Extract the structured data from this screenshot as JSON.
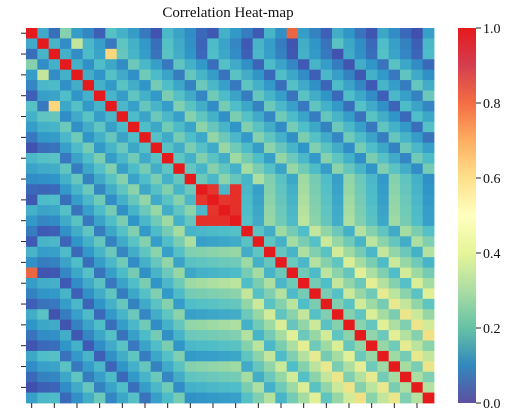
{
  "chart_data": {
    "type": "heatmap",
    "title": "Correlation Heat-map",
    "size": 36,
    "value_range": [
      0.0,
      1.0
    ],
    "colormap": "Spectral_r",
    "colorbar": {
      "ticks": [
        {
          "value": 0.0,
          "label": "0.0"
        },
        {
          "value": 0.2,
          "label": "0.2"
        },
        {
          "value": 0.4,
          "label": "0.4"
        },
        {
          "value": 0.6,
          "label": "0.6"
        },
        {
          "value": 0.8,
          "label": "0.8"
        },
        {
          "value": 1.0,
          "label": "1.0"
        }
      ]
    },
    "axis_tick_labels_visible": false,
    "matrix_upper_rows": [
      [
        1.0,
        0.26,
        0.12,
        0.42,
        0.22,
        0.17,
        0.09,
        0.33,
        0.28,
        0.22,
        0.14,
        0.05,
        0.3,
        0.24,
        0.18,
        0.11,
        0.07,
        0.28,
        0.21,
        0.15,
        0.08,
        0.29,
        0.19,
        0.86,
        0.22,
        0.16,
        0.09,
        0.27,
        0.2,
        0.13,
        0.06,
        0.25,
        0.18,
        0.11,
        0.04,
        0.23
      ],
      [
        0.0,
        1.0,
        0.29,
        0.18,
        0.51,
        0.3,
        0.23,
        0.14,
        0.35,
        0.28,
        0.21,
        0.12,
        0.33,
        0.26,
        0.19,
        0.1,
        0.31,
        0.24,
        0.17,
        0.08,
        0.29,
        0.22,
        0.15,
        0.06,
        0.27,
        0.2,
        0.13,
        0.34,
        0.25,
        0.18,
        0.11,
        0.32,
        0.23,
        0.16,
        0.09,
        0.3
      ],
      [
        0.0,
        0.0,
        1.0,
        0.28,
        0.18,
        0.31,
        0.24,
        0.65,
        0.36,
        0.29,
        0.22,
        0.13,
        0.34,
        0.27,
        0.2,
        0.11,
        0.32,
        0.25,
        0.18,
        0.09,
        0.3,
        0.23,
        0.16,
        0.07,
        0.28,
        0.21,
        0.14,
        0.05,
        0.26,
        0.19,
        0.12,
        0.33,
        0.24,
        0.17,
        0.1,
        0.31
      ],
      [
        0.0,
        0.0,
        0.0,
        1.0,
        0.28,
        0.19,
        0.32,
        0.25,
        0.18,
        0.37,
        0.3,
        0.23,
        0.14,
        0.35,
        0.28,
        0.21,
        0.12,
        0.33,
        0.26,
        0.19,
        0.1,
        0.31,
        0.24,
        0.17,
        0.08,
        0.29,
        0.22,
        0.15,
        0.06,
        0.27,
        0.2,
        0.13,
        0.34,
        0.25,
        0.18,
        0.11
      ],
      [
        0.0,
        0.0,
        0.0,
        0.0,
        1.0,
        0.27,
        0.2,
        0.33,
        0.26,
        0.19,
        0.38,
        0.31,
        0.24,
        0.15,
        0.36,
        0.29,
        0.22,
        0.13,
        0.34,
        0.27,
        0.2,
        0.11,
        0.32,
        0.25,
        0.18,
        0.09,
        0.3,
        0.23,
        0.16,
        0.07,
        0.28,
        0.21,
        0.14,
        0.35,
        0.26,
        0.19
      ],
      [
        0.0,
        0.0,
        0.0,
        0.0,
        0.0,
        1.0,
        0.28,
        0.21,
        0.34,
        0.27,
        0.2,
        0.39,
        0.32,
        0.25,
        0.16,
        0.37,
        0.3,
        0.23,
        0.14,
        0.35,
        0.28,
        0.21,
        0.12,
        0.33,
        0.26,
        0.19,
        0.1,
        0.31,
        0.24,
        0.17,
        0.08,
        0.29,
        0.22,
        0.15,
        0.36,
        0.27
      ],
      [
        0.0,
        0.0,
        0.0,
        0.0,
        0.0,
        0.0,
        1.0,
        0.29,
        0.22,
        0.35,
        0.28,
        0.21,
        0.4,
        0.33,
        0.26,
        0.17,
        0.38,
        0.31,
        0.24,
        0.15,
        0.36,
        0.29,
        0.22,
        0.13,
        0.34,
        0.27,
        0.2,
        0.11,
        0.32,
        0.25,
        0.18,
        0.09,
        0.3,
        0.23,
        0.16,
        0.37
      ],
      [
        0.0,
        0.0,
        0.0,
        0.0,
        0.0,
        0.0,
        0.0,
        1.0,
        0.3,
        0.23,
        0.36,
        0.29,
        0.22,
        0.41,
        0.34,
        0.27,
        0.18,
        0.39,
        0.32,
        0.25,
        0.16,
        0.37,
        0.3,
        0.23,
        0.14,
        0.35,
        0.28,
        0.21,
        0.12,
        0.33,
        0.26,
        0.19,
        0.1,
        0.31,
        0.24,
        0.17
      ],
      [
        0.0,
        0.0,
        0.0,
        0.0,
        0.0,
        0.0,
        0.0,
        0.0,
        1.0,
        0.31,
        0.24,
        0.37,
        0.3,
        0.23,
        0.42,
        0.35,
        0.28,
        0.19,
        0.4,
        0.33,
        0.26,
        0.17,
        0.38,
        0.31,
        0.24,
        0.15,
        0.36,
        0.29,
        0.22,
        0.13,
        0.34,
        0.27,
        0.2,
        0.11,
        0.32,
        0.25
      ],
      [
        0.0,
        0.0,
        0.0,
        0.0,
        0.0,
        0.0,
        0.0,
        0.0,
        0.0,
        1.0,
        0.32,
        0.25,
        0.38,
        0.31,
        0.24,
        0.43,
        0.36,
        0.29,
        0.2,
        0.41,
        0.34,
        0.27,
        0.18,
        0.39,
        0.32,
        0.25,
        0.16,
        0.37,
        0.3,
        0.23,
        0.14,
        0.35,
        0.28,
        0.21,
        0.12,
        0.33
      ],
      [
        0.0,
        0.0,
        0.0,
        0.0,
        0.0,
        0.0,
        0.0,
        0.0,
        0.0,
        0.0,
        1.0,
        0.33,
        0.26,
        0.39,
        0.32,
        0.25,
        0.44,
        0.37,
        0.3,
        0.21,
        0.42,
        0.35,
        0.28,
        0.19,
        0.4,
        0.33,
        0.26,
        0.17,
        0.38,
        0.31,
        0.24,
        0.15,
        0.36,
        0.29,
        0.22,
        0.13
      ],
      [
        0.0,
        0.0,
        0.0,
        0.0,
        0.0,
        0.0,
        0.0,
        0.0,
        0.0,
        0.0,
        0.0,
        1.0,
        0.34,
        0.27,
        0.4,
        0.33,
        0.26,
        0.45,
        0.38,
        0.31,
        0.22,
        0.43,
        0.36,
        0.29,
        0.2,
        0.41,
        0.34,
        0.27,
        0.18,
        0.39,
        0.32,
        0.25,
        0.16,
        0.37,
        0.3,
        0.23
      ],
      [
        0.0,
        0.0,
        0.0,
        0.0,
        0.0,
        0.0,
        0.0,
        0.0,
        0.0,
        0.0,
        0.0,
        0.0,
        1.0,
        0.35,
        0.28,
        0.41,
        0.34,
        0.27,
        0.46,
        0.39,
        0.32,
        0.23,
        0.44,
        0.37,
        0.3,
        0.21,
        0.42,
        0.35,
        0.28,
        0.19,
        0.4,
        0.33,
        0.26,
        0.17,
        0.38,
        0.31
      ],
      [
        0.0,
        0.0,
        0.0,
        0.0,
        0.0,
        0.0,
        0.0,
        0.0,
        0.0,
        0.0,
        0.0,
        0.0,
        0.0,
        1.0,
        0.36,
        0.29,
        0.42,
        0.35,
        0.28,
        0.47,
        0.4,
        0.33,
        0.24,
        0.45,
        0.38,
        0.31,
        0.22,
        0.43,
        0.36,
        0.29,
        0.2,
        0.41,
        0.34,
        0.27,
        0.18,
        0.39
      ],
      [
        0.0,
        0.0,
        0.0,
        0.0,
        0.0,
        0.0,
        0.0,
        0.0,
        0.0,
        0.0,
        0.0,
        0.0,
        0.0,
        0.0,
        1.0,
        0.37,
        0.3,
        0.43,
        0.36,
        0.29,
        0.48,
        0.41,
        0.34,
        0.25,
        0.46,
        0.39,
        0.32,
        0.23,
        0.44,
        0.37,
        0.3,
        0.21,
        0.42,
        0.35,
        0.28,
        0.19
      ],
      [
        0.0,
        0.0,
        0.0,
        0.0,
        0.0,
        0.0,
        0.0,
        0.0,
        0.0,
        0.0,
        0.0,
        0.0,
        0.0,
        0.0,
        0.0,
        1.0,
        0.95,
        0.3,
        0.96,
        0.3,
        0.23,
        0.42,
        0.35,
        0.28,
        0.47,
        0.4,
        0.33,
        0.24,
        0.45,
        0.38,
        0.31,
        0.22,
        0.43,
        0.36,
        0.29,
        0.2
      ],
      [
        0.0,
        0.0,
        0.0,
        0.0,
        0.0,
        0.0,
        0.0,
        0.0,
        0.0,
        0.0,
        0.0,
        0.0,
        0.0,
        0.0,
        0.0,
        0.0,
        1.0,
        0.95,
        0.96,
        0.31,
        0.24,
        0.43,
        0.36,
        0.29,
        0.48,
        0.41,
        0.34,
        0.25,
        0.46,
        0.39,
        0.32,
        0.23,
        0.44,
        0.37,
        0.3,
        0.21
      ],
      [
        0.0,
        0.0,
        0.0,
        0.0,
        0.0,
        0.0,
        0.0,
        0.0,
        0.0,
        0.0,
        0.0,
        0.0,
        0.0,
        0.0,
        0.0,
        0.0,
        0.0,
        1.0,
        0.96,
        0.32,
        0.25,
        0.44,
        0.37,
        0.3,
        0.49,
        0.42,
        0.35,
        0.26,
        0.47,
        0.4,
        0.33,
        0.24,
        0.45,
        0.38,
        0.31,
        0.22
      ],
      [
        0.0,
        0.0,
        0.0,
        0.0,
        0.0,
        0.0,
        0.0,
        0.0,
        0.0,
        0.0,
        0.0,
        0.0,
        0.0,
        0.0,
        0.0,
        0.0,
        0.0,
        0.0,
        1.0,
        0.33,
        0.26,
        0.45,
        0.38,
        0.31,
        0.5,
        0.43,
        0.36,
        0.27,
        0.48,
        0.41,
        0.34,
        0.25,
        0.46,
        0.39,
        0.32,
        0.23
      ],
      [
        0.0,
        0.0,
        0.0,
        0.0,
        0.0,
        0.0,
        0.0,
        0.0,
        0.0,
        0.0,
        0.0,
        0.0,
        0.0,
        0.0,
        0.0,
        0.0,
        0.0,
        0.0,
        0.0,
        1.0,
        0.34,
        0.27,
        0.46,
        0.39,
        0.32,
        0.51,
        0.44,
        0.37,
        0.28,
        0.49,
        0.42,
        0.35,
        0.26,
        0.47,
        0.4,
        0.33
      ],
      [
        0.0,
        0.0,
        0.0,
        0.0,
        0.0,
        0.0,
        0.0,
        0.0,
        0.0,
        0.0,
        0.0,
        0.0,
        0.0,
        0.0,
        0.0,
        0.0,
        0.0,
        0.0,
        0.0,
        0.0,
        1.0,
        0.35,
        0.28,
        0.47,
        0.4,
        0.33,
        0.52,
        0.45,
        0.38,
        0.29,
        0.5,
        0.43,
        0.36,
        0.27,
        0.48,
        0.41
      ],
      [
        0.0,
        0.0,
        0.0,
        0.0,
        0.0,
        0.0,
        0.0,
        0.0,
        0.0,
        0.0,
        0.0,
        0.0,
        0.0,
        0.0,
        0.0,
        0.0,
        0.0,
        0.0,
        0.0,
        0.0,
        0.0,
        1.0,
        0.36,
        0.29,
        0.48,
        0.41,
        0.34,
        0.53,
        0.46,
        0.39,
        0.3,
        0.51,
        0.44,
        0.37,
        0.28,
        0.49
      ],
      [
        0.0,
        0.0,
        0.0,
        0.0,
        0.0,
        0.0,
        0.0,
        0.0,
        0.0,
        0.0,
        0.0,
        0.0,
        0.0,
        0.0,
        0.0,
        0.0,
        0.0,
        0.0,
        0.0,
        0.0,
        0.0,
        0.0,
        1.0,
        0.37,
        0.3,
        0.49,
        0.42,
        0.35,
        0.54,
        0.47,
        0.4,
        0.31,
        0.52,
        0.45,
        0.38,
        0.29
      ],
      [
        0.0,
        0.0,
        0.0,
        0.0,
        0.0,
        0.0,
        0.0,
        0.0,
        0.0,
        0.0,
        0.0,
        0.0,
        0.0,
        0.0,
        0.0,
        0.0,
        0.0,
        0.0,
        0.0,
        0.0,
        0.0,
        0.0,
        0.0,
        1.0,
        0.38,
        0.31,
        0.5,
        0.43,
        0.36,
        0.55,
        0.48,
        0.41,
        0.32,
        0.53,
        0.46,
        0.39
      ],
      [
        0.0,
        0.0,
        0.0,
        0.0,
        0.0,
        0.0,
        0.0,
        0.0,
        0.0,
        0.0,
        0.0,
        0.0,
        0.0,
        0.0,
        0.0,
        0.0,
        0.0,
        0.0,
        0.0,
        0.0,
        0.0,
        0.0,
        0.0,
        0.0,
        1.0,
        0.39,
        0.32,
        0.51,
        0.44,
        0.37,
        0.56,
        0.49,
        0.42,
        0.33,
        0.54,
        0.47
      ],
      [
        0.0,
        0.0,
        0.0,
        0.0,
        0.0,
        0.0,
        0.0,
        0.0,
        0.0,
        0.0,
        0.0,
        0.0,
        0.0,
        0.0,
        0.0,
        0.0,
        0.0,
        0.0,
        0.0,
        0.0,
        0.0,
        0.0,
        0.0,
        0.0,
        0.0,
        1.0,
        0.4,
        0.33,
        0.52,
        0.45,
        0.38,
        0.57,
        0.5,
        0.43,
        0.34,
        0.55
      ],
      [
        0.0,
        0.0,
        0.0,
        0.0,
        0.0,
        0.0,
        0.0,
        0.0,
        0.0,
        0.0,
        0.0,
        0.0,
        0.0,
        0.0,
        0.0,
        0.0,
        0.0,
        0.0,
        0.0,
        0.0,
        0.0,
        0.0,
        0.0,
        0.0,
        0.0,
        0.0,
        1.0,
        0.41,
        0.34,
        0.53,
        0.46,
        0.39,
        0.58,
        0.51,
        0.44,
        0.35
      ],
      [
        0.0,
        0.0,
        0.0,
        0.0,
        0.0,
        0.0,
        0.0,
        0.0,
        0.0,
        0.0,
        0.0,
        0.0,
        0.0,
        0.0,
        0.0,
        0.0,
        0.0,
        0.0,
        0.0,
        0.0,
        0.0,
        0.0,
        0.0,
        0.0,
        0.0,
        0.0,
        0.0,
        1.0,
        0.42,
        0.35,
        0.54,
        0.47,
        0.4,
        0.59,
        0.52,
        0.45
      ],
      [
        0.0,
        0.0,
        0.0,
        0.0,
        0.0,
        0.0,
        0.0,
        0.0,
        0.0,
        0.0,
        0.0,
        0.0,
        0.0,
        0.0,
        0.0,
        0.0,
        0.0,
        0.0,
        0.0,
        0.0,
        0.0,
        0.0,
        0.0,
        0.0,
        0.0,
        0.0,
        0.0,
        0.0,
        1.0,
        0.43,
        0.36,
        0.55,
        0.48,
        0.41,
        0.6,
        0.53
      ],
      [
        0.0,
        0.0,
        0.0,
        0.0,
        0.0,
        0.0,
        0.0,
        0.0,
        0.0,
        0.0,
        0.0,
        0.0,
        0.0,
        0.0,
        0.0,
        0.0,
        0.0,
        0.0,
        0.0,
        0.0,
        0.0,
        0.0,
        0.0,
        0.0,
        0.0,
        0.0,
        0.0,
        0.0,
        0.0,
        1.0,
        0.44,
        0.37,
        0.56,
        0.49,
        0.42,
        0.61
      ],
      [
        0.0,
        0.0,
        0.0,
        0.0,
        0.0,
        0.0,
        0.0,
        0.0,
        0.0,
        0.0,
        0.0,
        0.0,
        0.0,
        0.0,
        0.0,
        0.0,
        0.0,
        0.0,
        0.0,
        0.0,
        0.0,
        0.0,
        0.0,
        0.0,
        0.0,
        0.0,
        0.0,
        0.0,
        0.0,
        0.0,
        1.0,
        0.45,
        0.38,
        0.57,
        0.5,
        0.43
      ],
      [
        0.0,
        0.0,
        0.0,
        0.0,
        0.0,
        0.0,
        0.0,
        0.0,
        0.0,
        0.0,
        0.0,
        0.0,
        0.0,
        0.0,
        0.0,
        0.0,
        0.0,
        0.0,
        0.0,
        0.0,
        0.0,
        0.0,
        0.0,
        0.0,
        0.0,
        0.0,
        0.0,
        0.0,
        0.0,
        0.0,
        0.0,
        1.0,
        0.46,
        0.39,
        0.58,
        0.51
      ],
      [
        0.0,
        0.0,
        0.0,
        0.0,
        0.0,
        0.0,
        0.0,
        0.0,
        0.0,
        0.0,
        0.0,
        0.0,
        0.0,
        0.0,
        0.0,
        0.0,
        0.0,
        0.0,
        0.0,
        0.0,
        0.0,
        0.0,
        0.0,
        0.0,
        0.0,
        0.0,
        0.0,
        0.0,
        0.0,
        0.0,
        0.0,
        0.0,
        1.0,
        0.47,
        0.4,
        0.59
      ],
      [
        0.0,
        0.0,
        0.0,
        0.0,
        0.0,
        0.0,
        0.0,
        0.0,
        0.0,
        0.0,
        0.0,
        0.0,
        0.0,
        0.0,
        0.0,
        0.0,
        0.0,
        0.0,
        0.0,
        0.0,
        0.0,
        0.0,
        0.0,
        0.0,
        0.0,
        0.0,
        0.0,
        0.0,
        0.0,
        0.0,
        0.0,
        0.0,
        0.0,
        1.0,
        0.48,
        0.41
      ],
      [
        0.0,
        0.0,
        0.0,
        0.0,
        0.0,
        0.0,
        0.0,
        0.0,
        0.0,
        0.0,
        0.0,
        0.0,
        0.0,
        0.0,
        0.0,
        0.0,
        0.0,
        0.0,
        0.0,
        0.0,
        0.0,
        0.0,
        0.0,
        0.0,
        0.0,
        0.0,
        0.0,
        0.0,
        0.0,
        0.0,
        0.0,
        0.0,
        0.0,
        0.0,
        1.0,
        0.49
      ],
      [
        0.0,
        0.0,
        0.0,
        0.0,
        0.0,
        0.0,
        0.0,
        0.0,
        0.0,
        0.0,
        0.0,
        0.0,
        0.0,
        0.0,
        0.0,
        0.0,
        0.0,
        0.0,
        0.0,
        0.0,
        0.0,
        0.0,
        0.0,
        0.0,
        0.0,
        0.0,
        0.0,
        0.0,
        0.0,
        0.0,
        0.0,
        0.0,
        0.0,
        0.0,
        0.0,
        1.0
      ]
    ]
  }
}
